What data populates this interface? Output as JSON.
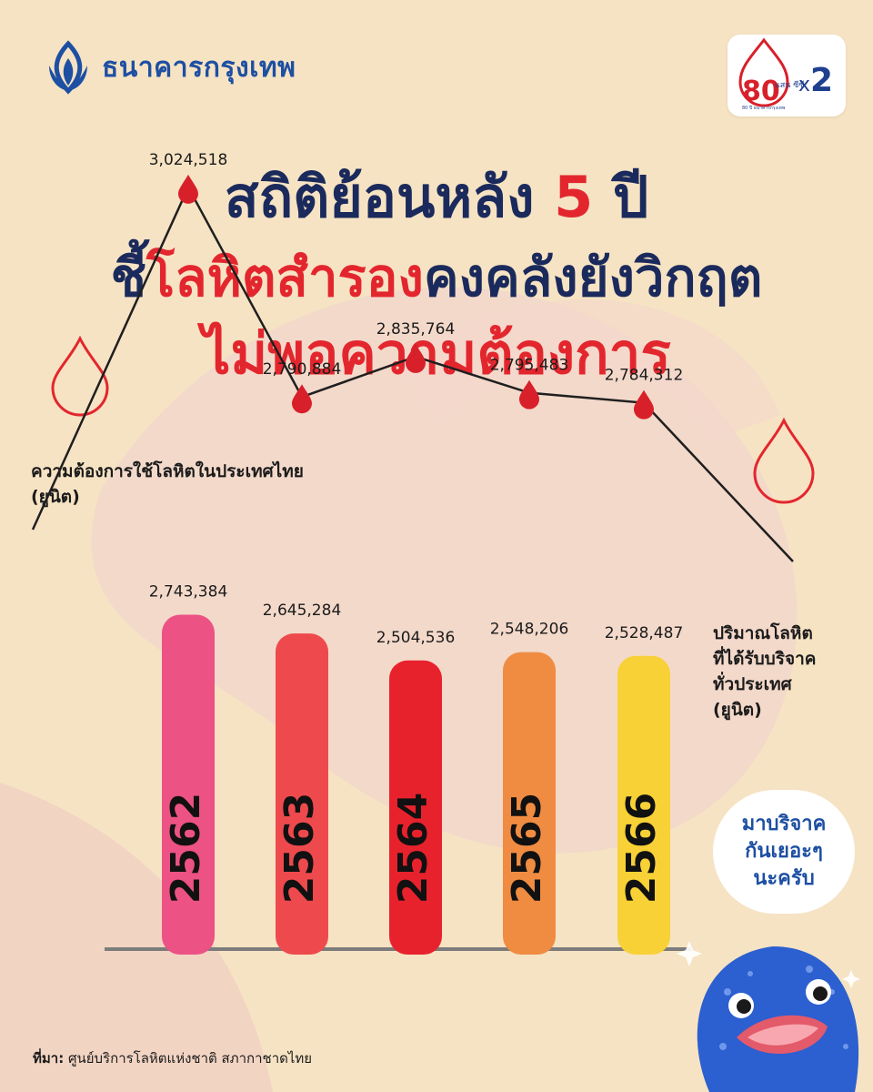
{
  "brand": {
    "name": "ธนาคารกรุงเทพ",
    "logo_icon": "lotus-icon"
  },
  "badge": {
    "number": "80",
    "text": "แสน ซีซี",
    "caption": "80 ปี ธนาคารกรุงเทพ",
    "multiplier": "2"
  },
  "title": {
    "line1_text": "สถิติย้อนหลัง ",
    "line1_number": "5",
    "line1_tail": " ปี",
    "line2_part1": "ชี้",
    "line2_highlight": "โลหิตสำรอง",
    "line2_part2": "คงคลังยังวิกฤต",
    "line3": "ไม่พอความต้องการ"
  },
  "chart_data": {
    "type": "bar",
    "categories": [
      "2562",
      "2563",
      "2564",
      "2565",
      "2566"
    ],
    "series": [
      {
        "name": "ปริมาณโลหิตที่ได้รับบริจาคทั่วประเทศ (ยูนิต)",
        "values": [
          2743384,
          2645284,
          2504536,
          2548206,
          2528487
        ],
        "value_labels": [
          "2,743,384",
          "2,645,284",
          "2,504,536",
          "2,548,206",
          "2,528,487"
        ]
      },
      {
        "name": "ความต้องการใช้โลหิตในประเทศไทย (ยูนิต)",
        "values": [
          3024518,
          2790884,
          2835764,
          2795483,
          2784312
        ],
        "value_labels": [
          "3,024,518",
          "2,790,884",
          "2,835,764",
          "2,795,483",
          "2,784,312"
        ]
      }
    ],
    "bar_colors": [
      "#ec5283",
      "#ee4a4d",
      "#e8222d",
      "#f08c42",
      "#f7d136"
    ],
    "line_color": "#1f1f1f",
    "marker_color": "#d8202a"
  },
  "labels": {
    "demand_line1": "ความต้องการใช้โลหิตในประเทศไทย",
    "demand_line2": "(ยูนิต)",
    "donation_line1": "ปริมาณโลหิต",
    "donation_line2": "ที่ได้รับบริจาค",
    "donation_line3": "ทั่วประเทศ",
    "donation_line4": "(ยูนิต)"
  },
  "bubble": {
    "text": "มาบริจาค\nกันเยอะๆ\nนะครับ"
  },
  "source": {
    "prefix": "ที่มา:",
    "text": " ศูนย์บริการโลหิตแห่งชาติ สภากาชาดไทย"
  }
}
